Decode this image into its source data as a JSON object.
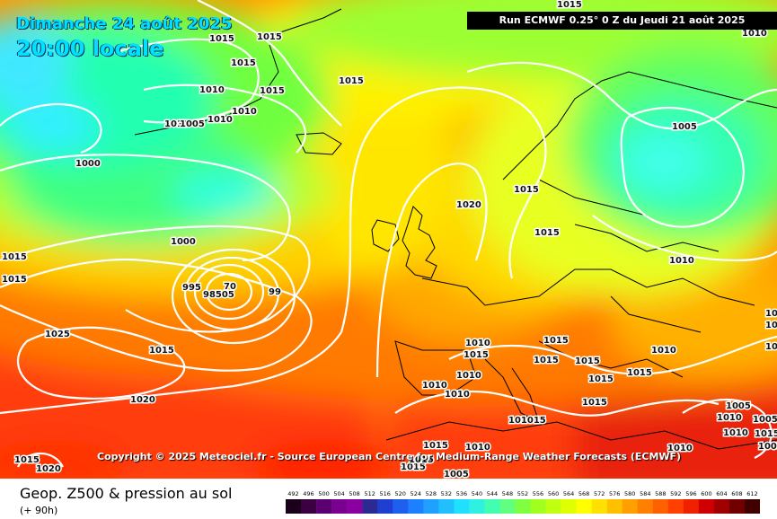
{
  "header": {
    "date_line": "Dimanche 24 août 2025",
    "time_line": "20:00 locale",
    "run_info": "Run ECMWF 0.25° 0 Z du Jeudi 21 août 2025"
  },
  "copyright": "Copyright © 2025 Meteociel.fr - Source European Centre for Medium-Range Weather Forecasts (ECMWF)",
  "footer": {
    "title": "Geop. Z500 & pression au sol",
    "subtitle": "(+ 90h)"
  },
  "scale": {
    "labels": [
      "492",
      "496",
      "500",
      "504",
      "508",
      "512",
      "516",
      "520",
      "524",
      "528",
      "532",
      "536",
      "540",
      "544",
      "548",
      "552",
      "556",
      "560",
      "564",
      "568",
      "572",
      "576",
      "580",
      "584",
      "588",
      "592",
      "596",
      "600",
      "604",
      "608",
      "612"
    ],
    "colors": [
      "#1a001a",
      "#3a0040",
      "#5a0070",
      "#7a0090",
      "#8a00a0",
      "#2a2a90",
      "#1f3fd0",
      "#1f5ff0",
      "#1f80ff",
      "#20a0ff",
      "#20c0ff",
      "#20e0ff",
      "#30f0e0",
      "#40ffb0",
      "#60ff80",
      "#80ff40",
      "#a0ff20",
      "#c0ff10",
      "#e0ff00",
      "#ffff00",
      "#ffe000",
      "#ffc000",
      "#ffa000",
      "#ff8000",
      "#ff6000",
      "#ff4000",
      "#f02000",
      "#d00000",
      "#a00000",
      "#700000",
      "#400000"
    ]
  },
  "pressure_labels": [
    {
      "text": "1015"
    },
    {
      "text": "1015"
    },
    {
      "text": "1015"
    },
    {
      "text": "1010"
    },
    {
      "text": "1015"
    },
    {
      "text": "1015"
    },
    {
      "text": "1010"
    },
    {
      "text": "1010"
    },
    {
      "text": "1005"
    },
    {
      "text": "1010"
    },
    {
      "text": "1000"
    },
    {
      "text": "1000"
    },
    {
      "text": "995"
    },
    {
      "text": "98505"
    },
    {
      "text": "70"
    },
    {
      "text": "99"
    },
    {
      "text": "1015"
    },
    {
      "text": "1015"
    },
    {
      "text": "1025"
    },
    {
      "text": "1015"
    },
    {
      "text": "1020"
    },
    {
      "text": "1015"
    },
    {
      "text": "1020"
    },
    {
      "text": "1020"
    },
    {
      "text": "1015"
    },
    {
      "text": "1015"
    },
    {
      "text": "1005"
    },
    {
      "text": "1010"
    },
    {
      "text": "1010"
    },
    {
      "text": "1015"
    },
    {
      "text": "1010"
    },
    {
      "text": "1010"
    },
    {
      "text": "1015"
    },
    {
      "text": "1015"
    },
    {
      "text": "1015"
    },
    {
      "text": "1015"
    },
    {
      "text": "1015"
    },
    {
      "text": "1010"
    },
    {
      "text": "1010"
    },
    {
      "text": "1015"
    },
    {
      "text": "1015"
    },
    {
      "text": "1015"
    },
    {
      "text": "101015"
    },
    {
      "text": "1015"
    },
    {
      "text": "1010"
    },
    {
      "text": "1015"
    },
    {
      "text": "1015"
    },
    {
      "text": "1005"
    },
    {
      "text": "1010"
    },
    {
      "text": "1005"
    },
    {
      "text": "1010"
    },
    {
      "text": "1005"
    },
    {
      "text": "1010"
    },
    {
      "text": "1015"
    },
    {
      "text": "1010"
    },
    {
      "text": "1005"
    },
    {
      "text": "1015"
    },
    {
      "text": "1015"
    }
  ]
}
